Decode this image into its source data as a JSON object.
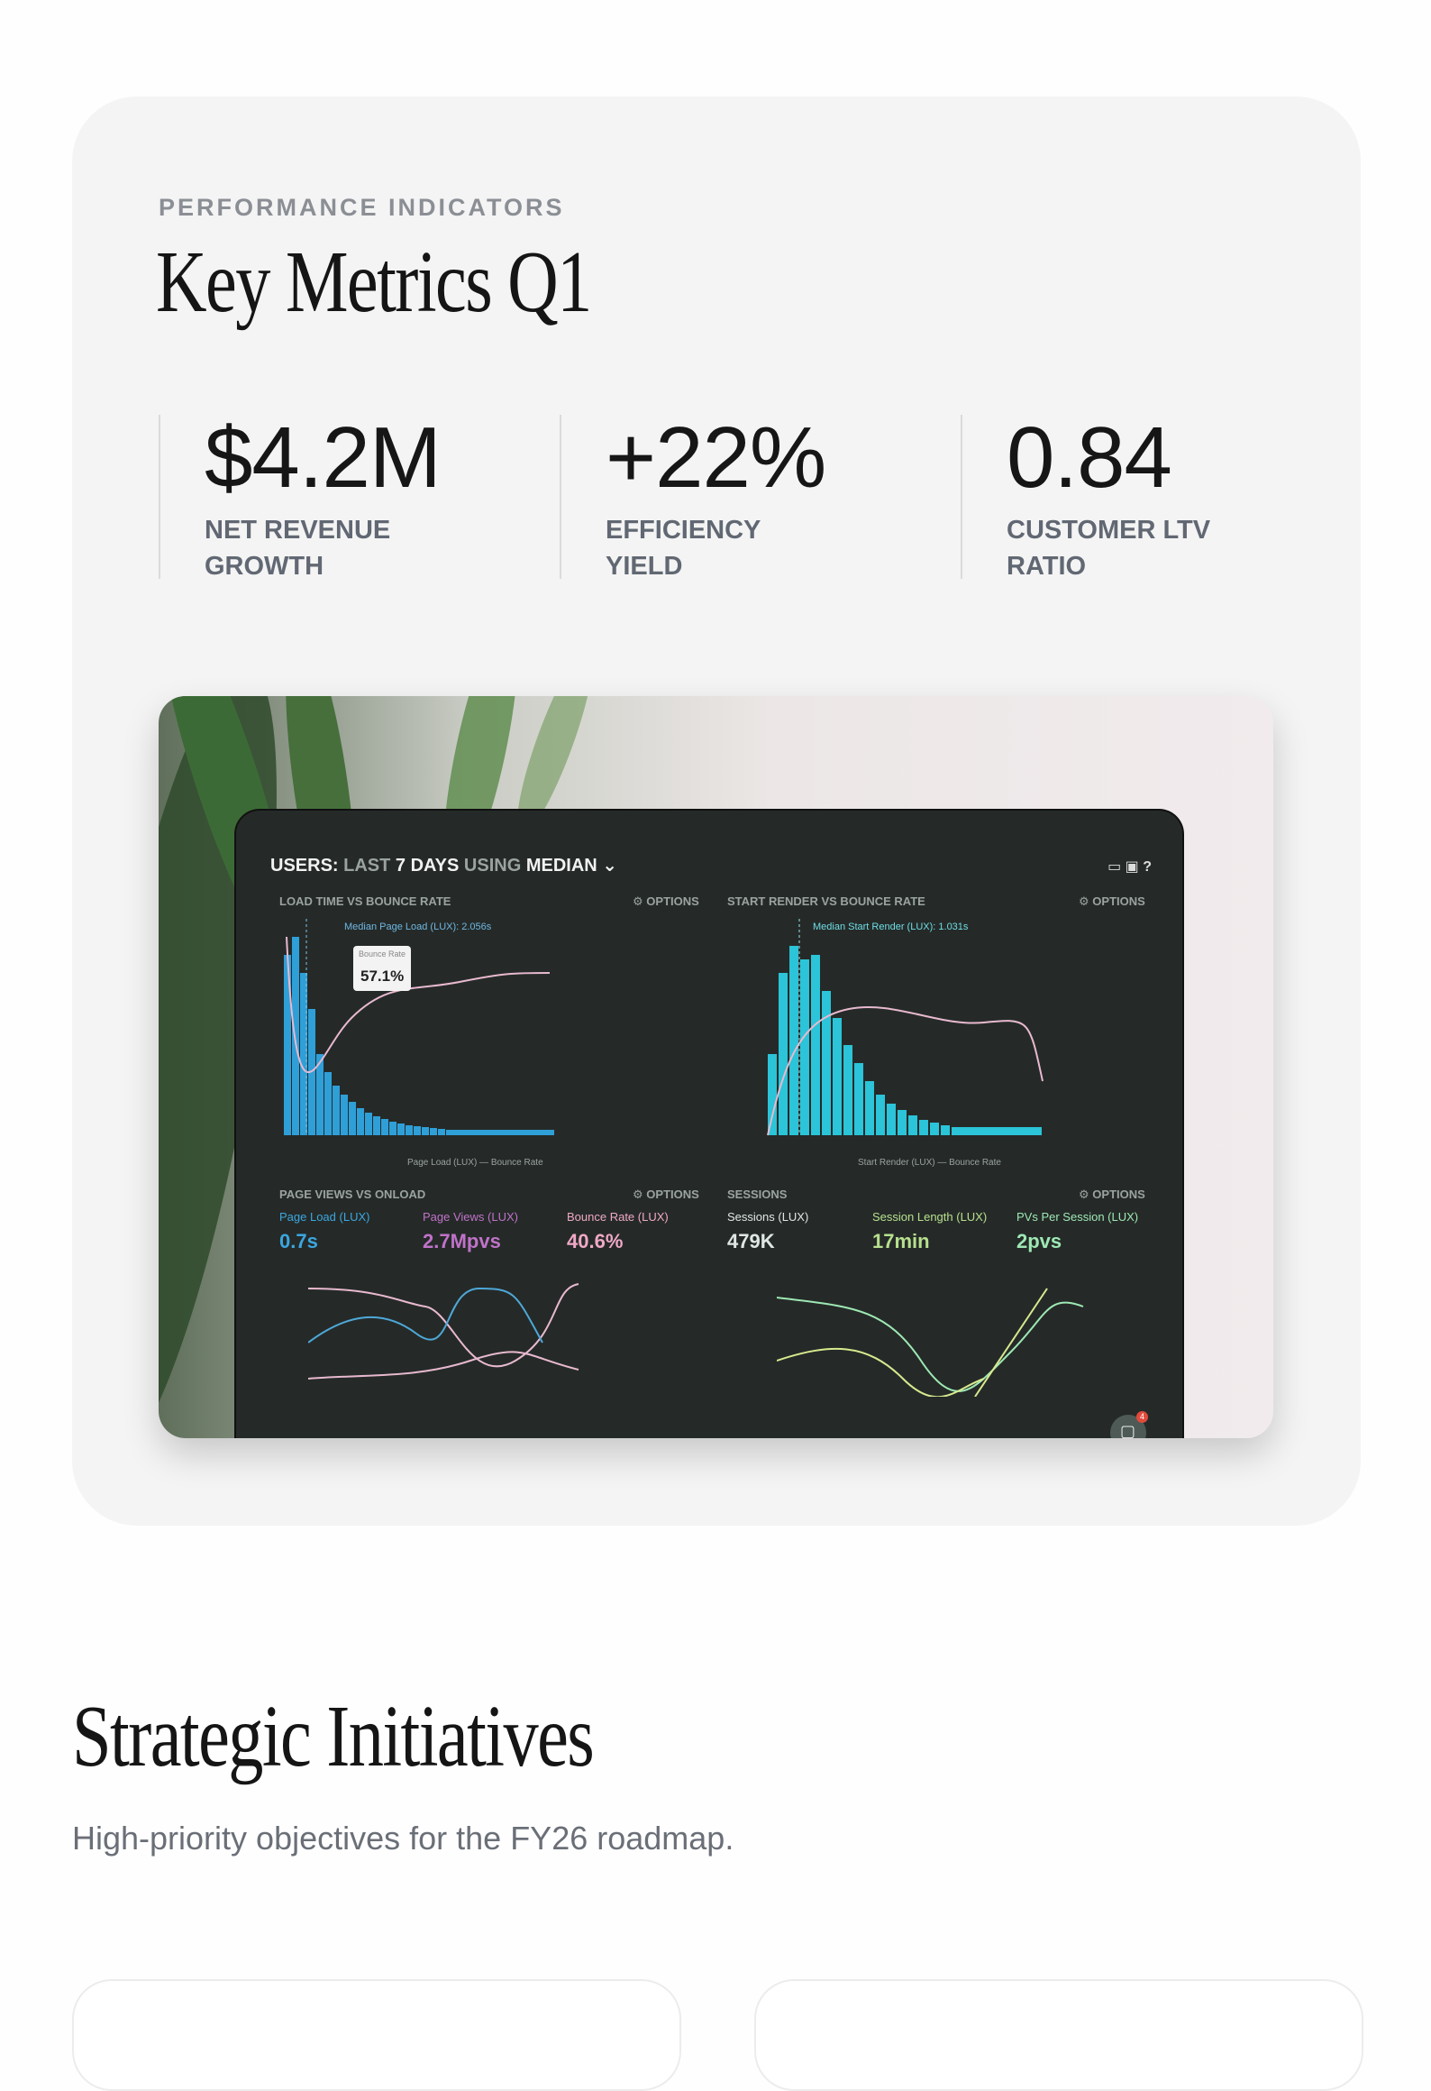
{
  "metrics_card": {
    "kicker": "PERFORMANCE INDICATORS",
    "title": "Key Metrics Q1",
    "metrics": [
      {
        "value": "$4.2M",
        "label": "NET REVENUE GROWTH"
      },
      {
        "value": "+22%",
        "label": "EFFICIENCY YIELD"
      },
      {
        "value": "0.84",
        "label": "CUSTOMER LTV RATIO"
      }
    ]
  },
  "dashboard_photo": {
    "header_prefix": "USERS:",
    "header_mid": "LAST",
    "header_days": "7 DAYS",
    "header_using": "USING",
    "header_median": "MEDIAN",
    "panel1_title": "LOAD TIME VS BOUNCE RATE",
    "panel1_median": "Median Page Load (LUX): 2.056s",
    "panel2_title": "START RENDER VS BOUNCE RATE",
    "panel2_median": "Median Start Render (LUX): 1.031s",
    "options": "OPTIONS",
    "tooltip_label": "Bounce Rate",
    "tooltip_value": "57.1%",
    "panel1_legend": "Page Load (LUX)   — Bounce Rate",
    "panel2_legend": "Start Render (LUX)   — Bounce Rate",
    "panel3_title": "PAGE VIEWS VS ONLOAD",
    "panel4_title": "SESSIONS",
    "stats": [
      {
        "label": "Page Load (LUX)",
        "value": "0.7s",
        "color": "#3ba7e0"
      },
      {
        "label": "Page Views (LUX)",
        "value": "2.7Mpvs",
        "color": "#c072c9"
      },
      {
        "label": "Bounce Rate (LUX)",
        "value": "40.6%",
        "color": "#f0a8c6"
      },
      {
        "label": "Sessions (LUX)",
        "value": "479K",
        "color": "#dfe7e4"
      },
      {
        "label": "Session Length (LUX)",
        "value": "17min",
        "color": "#b7e08e"
      },
      {
        "label": "PVs Per Session (LUX)",
        "value": "2pvs",
        "color": "#9ee8b4"
      }
    ],
    "chat_badge": "4"
  },
  "initiatives": {
    "title": "Strategic Initiatives",
    "subtitle": "High-priority objectives for the FY26 roadmap."
  }
}
